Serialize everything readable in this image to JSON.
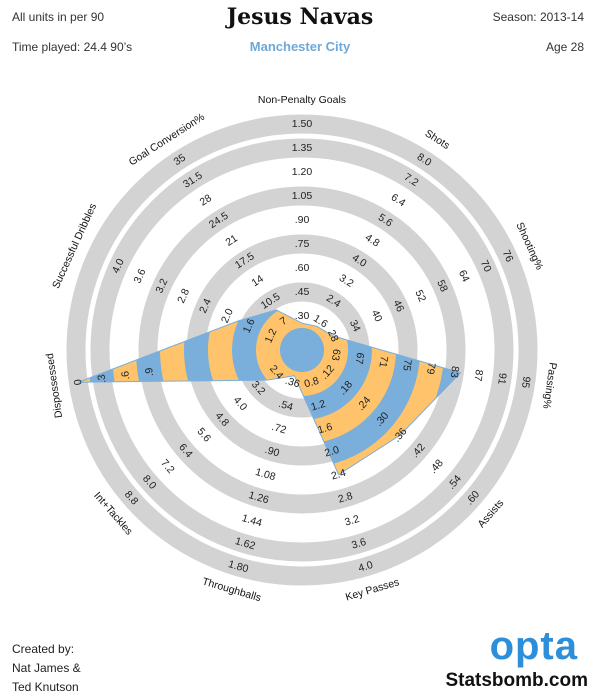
{
  "header": {
    "units_note": "All units in per 90",
    "time_played": "Time played: 24.4 90’s",
    "player": "Jesus Navas",
    "team": "Manchester City",
    "season": "Season: 2013-14",
    "age": "Age 28"
  },
  "credits": {
    "line1": "Created by:",
    "line2": "Nat James &",
    "line3": "Ted Knutson"
  },
  "brand": {
    "logo": "opta",
    "site": "Statsbomb.com"
  },
  "colors": {
    "ring_gray": "#d3d3d3",
    "fill_blue": "#7aaedb",
    "fill_orange": "#ffc46b",
    "team_blue": "#6fa8d6",
    "opta_blue": "#2d8fd9"
  },
  "chart_data": {
    "type": "radar",
    "title": "Jesus Navas",
    "subtitle": "Manchester City",
    "grid": true,
    "start_axis": "Non-Penalty Goals",
    "direction": "clockwise",
    "axes": [
      {
        "name": "Non-Penalty Goals",
        "ticks": [
          ".30",
          ".45",
          ".60",
          ".75",
          ".90",
          "1.05",
          "1.20",
          "1.35",
          "1.50"
        ],
        "value": 0.18
      },
      {
        "name": "Shots",
        "ticks": [
          "1.6",
          "2.4",
          "3.2",
          "4.0",
          "4.8",
          "5.6",
          "6.4",
          "7.2",
          "8.0"
        ],
        "value": 1.4
      },
      {
        "name": "Shooting%",
        "ticks": [
          "28",
          "34",
          "40",
          "46",
          "52",
          "58",
          "64",
          "70",
          "76"
        ],
        "value": 28
      },
      {
        "name": "Passing%",
        "ticks": [
          "63",
          "67",
          "71",
          "75",
          "79",
          "83",
          "87",
          "91",
          "95"
        ],
        "value": 84
      },
      {
        "name": "Assists",
        "ticks": [
          ".12",
          ".18",
          ".24",
          ".30",
          ".36",
          ".42",
          ".48",
          ".54",
          ".60"
        ],
        "value": 0.36
      },
      {
        "name": "Key Passes",
        "ticks": [
          "0.8",
          "1.2",
          "1.6",
          "2.0",
          "2.4",
          "2.8",
          "3.2",
          "3.6",
          "4.0"
        ],
        "value": 2.4
      },
      {
        "name": "Throughballs",
        "ticks": [
          ".36",
          ".54",
          ".72",
          ".90",
          "1.08",
          "1.26",
          "1.44",
          "1.62",
          "1.80"
        ],
        "value": 0.18
      },
      {
        "name": "Int+Tackles",
        "ticks": [
          "2.4",
          "3.2",
          "4.0",
          "4.8",
          "5.6",
          "6.4",
          "7.2",
          "8.0",
          "8.8"
        ],
        "value": 2.8
      },
      {
        "name": "Dispossessed",
        "ticks": [
          "",
          "",
          "",
          "",
          "",
          ".9",
          ".6",
          ".3",
          "0"
        ],
        "value": 0.0
      },
      {
        "name": "Successful Dribbles",
        "ticks": [
          "1.2",
          "1.6",
          "2.0",
          "2.4",
          "2.8",
          "3.2",
          "3.6",
          "4.0",
          ""
        ],
        "value": 1.8
      },
      {
        "name": "Goal Conversion%",
        "ticks": [
          "7",
          "10.5",
          "14",
          "17.5",
          "21",
          "24.5",
          "28",
          "31.5",
          "35"
        ],
        "value": 9
      }
    ]
  }
}
